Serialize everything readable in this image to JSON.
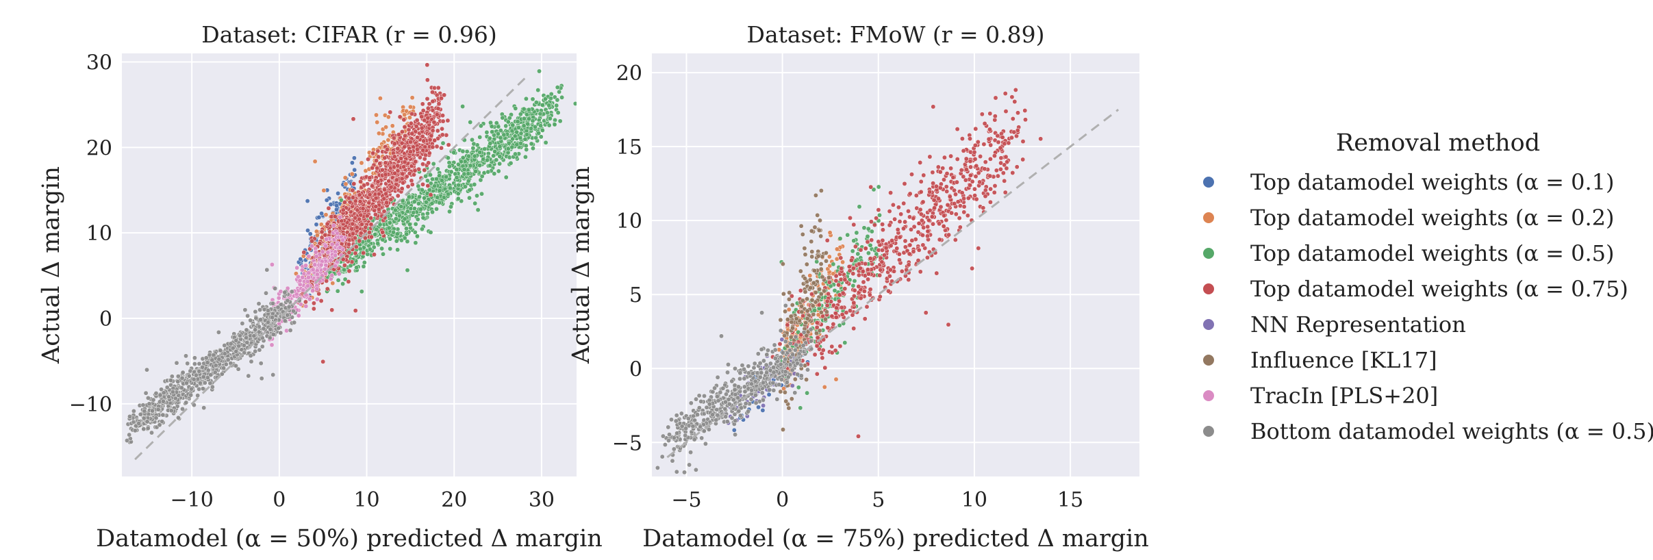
{
  "chart_data": [
    {
      "type": "scatter",
      "title": "Dataset: CIFAR (r = 0.96)",
      "xlabel": "Datamodel (α = 50%) predicted Δ margin",
      "ylabel": "Actual Δ margin",
      "xlim": [
        -18,
        34
      ],
      "ylim": [
        -18.5,
        31
      ],
      "xticks": [
        -10,
        0,
        10,
        20,
        30
      ],
      "xtick_labels": [
        "−10",
        "0",
        "10",
        "20",
        "30"
      ],
      "yticks": [
        -10,
        0,
        10,
        20,
        30
      ],
      "ytick_labels": [
        "−10",
        "0",
        "10",
        "20",
        "30"
      ],
      "grid": true,
      "reference_line": {
        "x": [
          -16.5,
          28.5
        ],
        "y": [
          -16.5,
          28.5
        ],
        "style": "dashed",
        "color": "#b0b0b0"
      },
      "series": [
        {
          "name": "Top datamodel weights (α = 0.1)",
          "color": "#4c72b0",
          "slope": 1.78,
          "intercept": 1.0,
          "noise": 1.5,
          "x_range": [
            2.5,
            8.5
          ],
          "n": 110
        },
        {
          "name": "Top datamodel weights (α = 0.2)",
          "color": "#dd8452",
          "slope": 1.46,
          "intercept": 1.4,
          "noise": 1.7,
          "x_range": [
            3,
            15
          ],
          "n": 260
        },
        {
          "name": "Top datamodel weights (α = 0.5)",
          "color": "#55a868",
          "slope": 0.74,
          "intercept": 1.6,
          "noise": 1.4,
          "x_range": [
            6,
            31
          ],
          "n": 1100
        },
        {
          "name": "Top datamodel weights (α = 0.75)",
          "color": "#c44e52",
          "slope": 1.26,
          "intercept": 0.5,
          "noise": 1.8,
          "x_range": [
            3.5,
            18
          ],
          "n": 1150
        },
        {
          "name": "TracIn [PLS+20]",
          "color": "#da8bc3",
          "slope": 1.1,
          "intercept": 0.7,
          "noise": 1.2,
          "x_range": [
            -1.5,
            7
          ],
          "n": 260
        },
        {
          "name": "Bottom datamodel weights (α = 0.5)",
          "color": "#8c8c8c",
          "slope": 0.78,
          "intercept": 0.4,
          "noise": 1.0,
          "x_range": [
            -17,
            1
          ],
          "n": 850
        }
      ]
    },
    {
      "type": "scatter",
      "title": "Dataset: FMoW (r = 0.89)",
      "xlabel": "Datamodel (α = 75%) predicted Δ margin",
      "ylabel": "Actual Δ margin",
      "xlim": [
        -6.8,
        18.6
      ],
      "ylim": [
        -7.3,
        21.3
      ],
      "xticks": [
        -5,
        0,
        5,
        10,
        15
      ],
      "xtick_labels": [
        "−5",
        "0",
        "5",
        "10",
        "15"
      ],
      "yticks": [
        -5,
        0,
        5,
        10,
        15,
        20
      ],
      "ytick_labels": [
        "−5",
        "0",
        "5",
        "10",
        "15",
        "20"
      ],
      "grid": true,
      "reference_line": {
        "x": [
          -6,
          17.5
        ],
        "y": [
          -6,
          17.5
        ],
        "style": "dashed",
        "color": "#b0b0b0"
      },
      "series": [
        {
          "name": "Top datamodel weights (α = 0.1)",
          "color": "#4c72b0",
          "slope": 1.2,
          "intercept": -0.2,
          "noise": 0.9,
          "x_range": [
            -2.5,
            1.2
          ],
          "n": 40
        },
        {
          "name": "Top datamodel weights (α = 0.2)",
          "color": "#dd8452",
          "slope": 2.2,
          "intercept": 0.6,
          "noise": 1.4,
          "x_range": [
            0,
            3
          ],
          "n": 140
        },
        {
          "name": "Top datamodel weights (α = 0.5)",
          "color": "#55a868",
          "slope": 1.7,
          "intercept": 0.6,
          "noise": 1.3,
          "x_range": [
            0.2,
            5
          ],
          "n": 170
        },
        {
          "name": "Top datamodel weights (α = 0.75)",
          "color": "#c44e52",
          "slope": 1.22,
          "intercept": 1.0,
          "noise": 1.5,
          "x_range": [
            0.5,
            12
          ],
          "n": 650
        },
        {
          "name": "NN Representation",
          "color": "#8172b3",
          "slope": 1.0,
          "intercept": 0.0,
          "noise": 0.8,
          "x_range": [
            -3,
            0.5
          ],
          "n": 50
        },
        {
          "name": "Influence [KL17]",
          "color": "#937860",
          "slope": 3.0,
          "intercept": 0.6,
          "noise": 2.2,
          "x_range": [
            0,
            2.2
          ],
          "n": 160
        },
        {
          "name": "Bottom datamodel weights (α = 0.5)",
          "color": "#8c8c8c",
          "slope": 0.85,
          "intercept": 0.2,
          "noise": 0.8,
          "x_range": [
            -6,
            1
          ],
          "n": 500
        }
      ]
    }
  ],
  "legend": {
    "title": "Removal method",
    "placement": "right",
    "items": [
      {
        "label": "Top datamodel weights (α = 0.1)",
        "color": "#4c72b0"
      },
      {
        "label": "Top datamodel weights (α = 0.2)",
        "color": "#dd8452"
      },
      {
        "label": "Top datamodel weights (α = 0.5)",
        "color": "#55a868"
      },
      {
        "label": "Top datamodel weights (α = 0.75)",
        "color": "#c44e52"
      },
      {
        "label": "NN Representation",
        "color": "#8172b3"
      },
      {
        "label": "Influence [KL17]",
        "color": "#937860"
      },
      {
        "label": "TracIn [PLS+20]",
        "color": "#da8bc3"
      },
      {
        "label": "Bottom datamodel weights (α = 0.5)",
        "color": "#8c8c8c"
      }
    ]
  },
  "colors": {
    "panel_bg": "#eaeaf2",
    "grid": "#ffffff"
  }
}
